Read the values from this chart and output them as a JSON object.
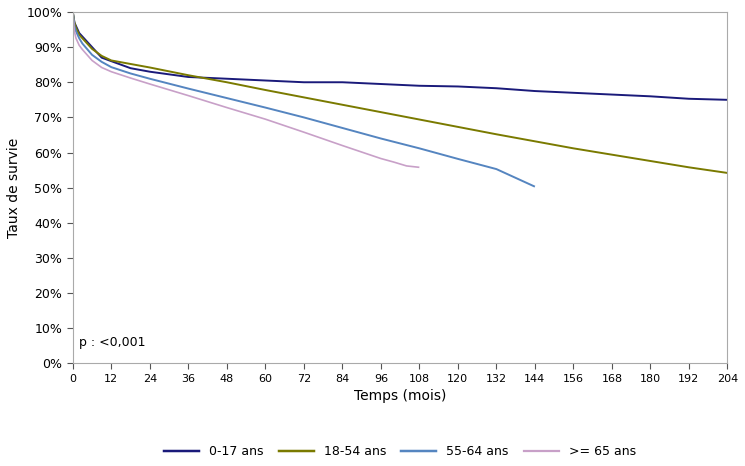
{
  "title": "",
  "xlabel": "Temps (mois)",
  "ylabel": "Taux de survie",
  "pvalue_text": "p : <0,001",
  "xlim": [
    0,
    204
  ],
  "ylim": [
    0.0,
    1.0
  ],
  "xticks": [
    0,
    12,
    24,
    36,
    48,
    60,
    72,
    84,
    96,
    108,
    120,
    132,
    144,
    156,
    168,
    180,
    192,
    204
  ],
  "yticks": [
    0.0,
    0.1,
    0.2,
    0.3,
    0.4,
    0.5,
    0.6,
    0.7,
    0.8,
    0.9,
    1.0
  ],
  "series": [
    {
      "label": "0-17 ans",
      "color": "#1a1a7a",
      "lw": 1.4,
      "x": [
        0,
        0.5,
        1,
        2,
        3,
        6,
        9,
        12,
        18,
        24,
        36,
        48,
        60,
        72,
        84,
        96,
        108,
        120,
        132,
        144,
        156,
        168,
        180,
        192,
        204
      ],
      "y": [
        1.0,
        0.97,
        0.96,
        0.94,
        0.93,
        0.9,
        0.87,
        0.86,
        0.84,
        0.83,
        0.815,
        0.81,
        0.805,
        0.8,
        0.8,
        0.795,
        0.79,
        0.788,
        0.783,
        0.775,
        0.77,
        0.765,
        0.76,
        0.753,
        0.75
      ]
    },
    {
      "label": "18-54 ans",
      "color": "#7a7a00",
      "lw": 1.4,
      "x": [
        0,
        0.5,
        1,
        2,
        3,
        6,
        9,
        12,
        18,
        24,
        36,
        48,
        60,
        72,
        84,
        96,
        108,
        120,
        132,
        144,
        156,
        168,
        180,
        192,
        204
      ],
      "y": [
        1.0,
        0.97,
        0.955,
        0.935,
        0.925,
        0.895,
        0.875,
        0.862,
        0.852,
        0.842,
        0.82,
        0.8,
        0.778,
        0.757,
        0.736,
        0.715,
        0.694,
        0.673,
        0.652,
        0.632,
        0.612,
        0.594,
        0.576,
        0.558,
        0.542
      ]
    },
    {
      "label": "55-64 ans",
      "color": "#5585c0",
      "lw": 1.4,
      "x": [
        0,
        0.5,
        1,
        2,
        3,
        6,
        9,
        12,
        18,
        24,
        36,
        48,
        60,
        72,
        84,
        96,
        108,
        120,
        132,
        144
      ],
      "y": [
        1.0,
        0.96,
        0.945,
        0.925,
        0.91,
        0.878,
        0.858,
        0.843,
        0.825,
        0.81,
        0.782,
        0.755,
        0.728,
        0.7,
        0.67,
        0.64,
        0.612,
        0.582,
        0.553,
        0.503
      ]
    },
    {
      "label": ">= 65 ans",
      "color": "#c8a0c8",
      "lw": 1.2,
      "x": [
        0,
        0.5,
        1,
        2,
        3,
        6,
        9,
        12,
        18,
        24,
        36,
        48,
        60,
        72,
        84,
        96,
        100,
        104,
        108
      ],
      "y": [
        1.0,
        0.945,
        0.925,
        0.905,
        0.893,
        0.862,
        0.842,
        0.83,
        0.812,
        0.795,
        0.762,
        0.728,
        0.695,
        0.658,
        0.62,
        0.583,
        0.573,
        0.562,
        0.558
      ]
    }
  ],
  "frame_color": "#aaaaaa",
  "tick_color": "#555555",
  "background_color": "#ffffff",
  "font_family": "Arial"
}
